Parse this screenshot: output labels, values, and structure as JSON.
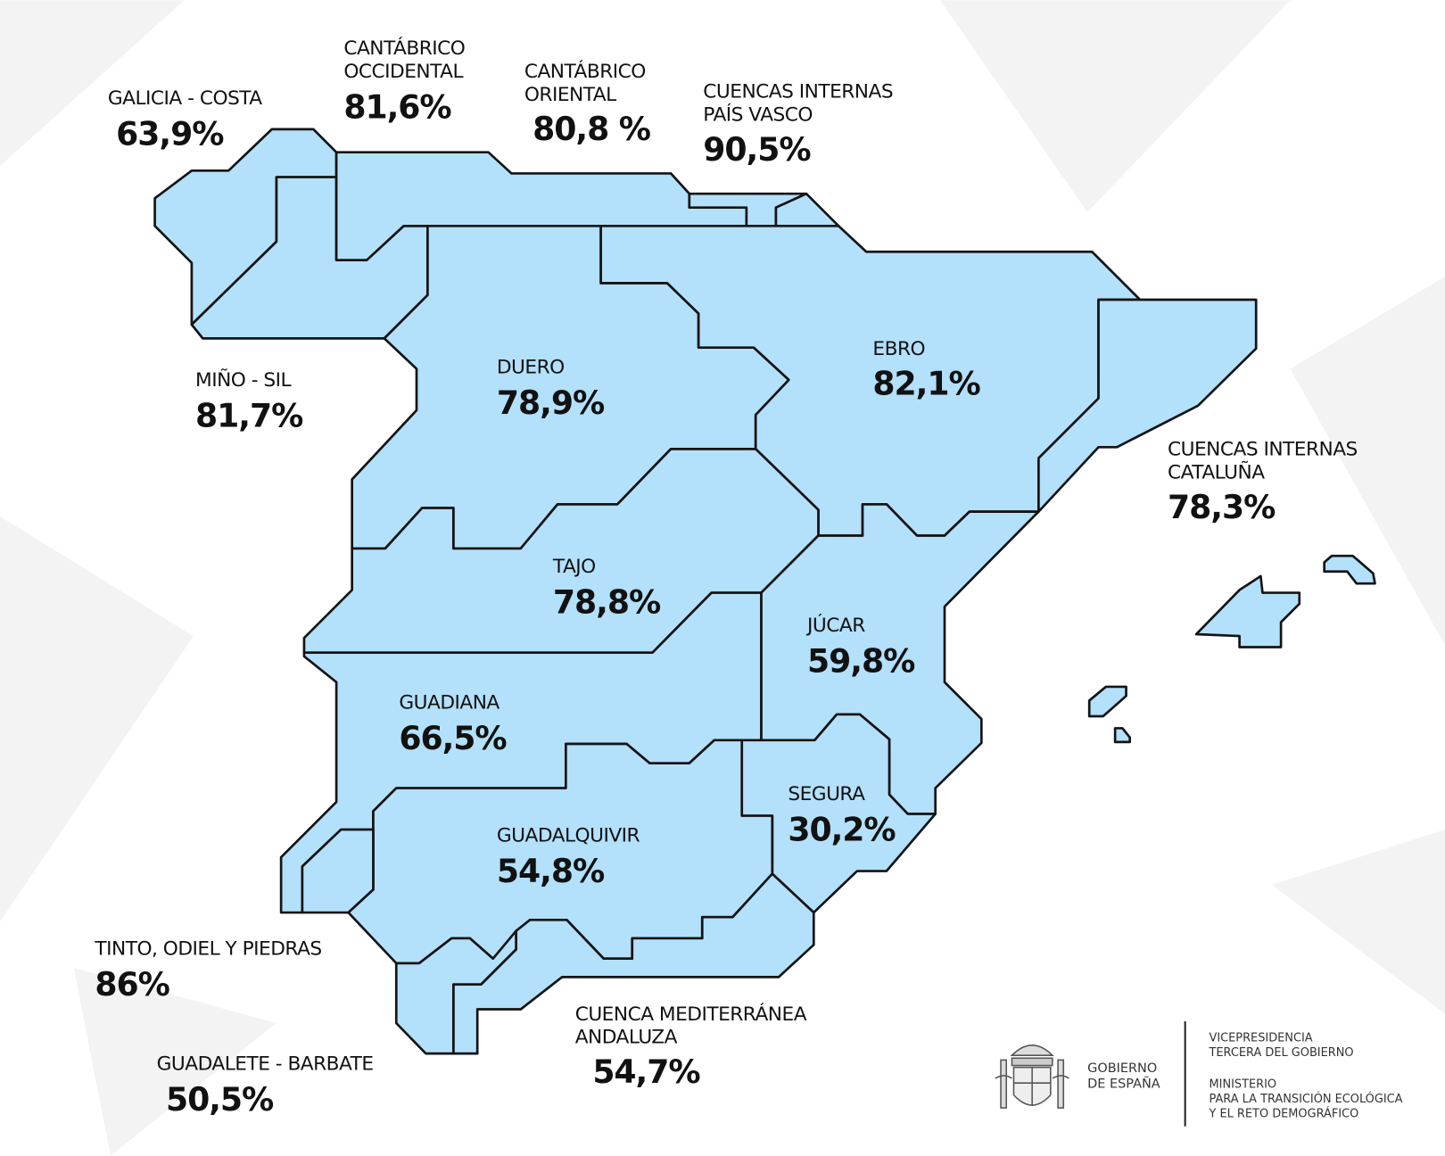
{
  "map": {
    "fill_color": "#b3e0fb",
    "border_color": "#141414",
    "regions": {
      "galicia_costa": {
        "label": [
          "GALICIA - COSTA"
        ],
        "value": "63,9%"
      },
      "mino_sil": {
        "label": [
          "MIÑO - SIL"
        ],
        "value": "81,7%"
      },
      "cantabrico_occidental": {
        "label": [
          "CANTÁBRICO",
          "OCCIDENTAL"
        ],
        "value": "81,6%"
      },
      "cantabrico_oriental": {
        "label": [
          "CANTÁBRICO",
          "ORIENTAL"
        ],
        "value": "80,8 %"
      },
      "pais_vasco": {
        "label": [
          "CUENCAS INTERNAS",
          "PAÍS VASCO"
        ],
        "value": "90,5%"
      },
      "duero": {
        "label": [
          "DUERO"
        ],
        "value": "78,9%"
      },
      "ebro": {
        "label": [
          "EBRO"
        ],
        "value": "82,1%"
      },
      "cataluna": {
        "label": [
          "CUENCAS INTERNAS",
          "CATALUÑA"
        ],
        "value": "78,3%"
      },
      "tajo": {
        "label": [
          "TAJO"
        ],
        "value": "78,8%"
      },
      "jucar": {
        "label": [
          "JÚCAR"
        ],
        "value": "59,8%"
      },
      "guadiana": {
        "label": [
          "GUADIANA"
        ],
        "value": "66,5%"
      },
      "segura": {
        "label": [
          "SEGURA"
        ],
        "value": "30,2%"
      },
      "guadalquivir": {
        "label": [
          "GUADALQUIVIR"
        ],
        "value": "54,8%"
      },
      "tinto_odiel": {
        "label": [
          "TINTO, ODIEL Y PIEDRAS"
        ],
        "value": "86%"
      },
      "guadalete": {
        "label": [
          "GUADALETE - BARBATE"
        ],
        "value": "50,5%"
      },
      "mediterranea_andaluza": {
        "label": [
          "CUENCA MEDITERRÁNEA",
          "ANDALUZA"
        ],
        "value": "54,7%"
      }
    }
  },
  "footer": {
    "gov_lines": [
      "GOBIERNO",
      "DE ESPAÑA"
    ],
    "vice_lines": [
      "VICEPRESIDENCIA",
      "TERCERA DEL GOBIERNO"
    ],
    "ministry_lines": [
      "MINISTERIO",
      "PARA LA TRANSICIÓN ECOLÓGICA",
      "Y EL RETO DEMOGRÁFICO"
    ],
    "coat_of_arms": "Escudo de España"
  }
}
